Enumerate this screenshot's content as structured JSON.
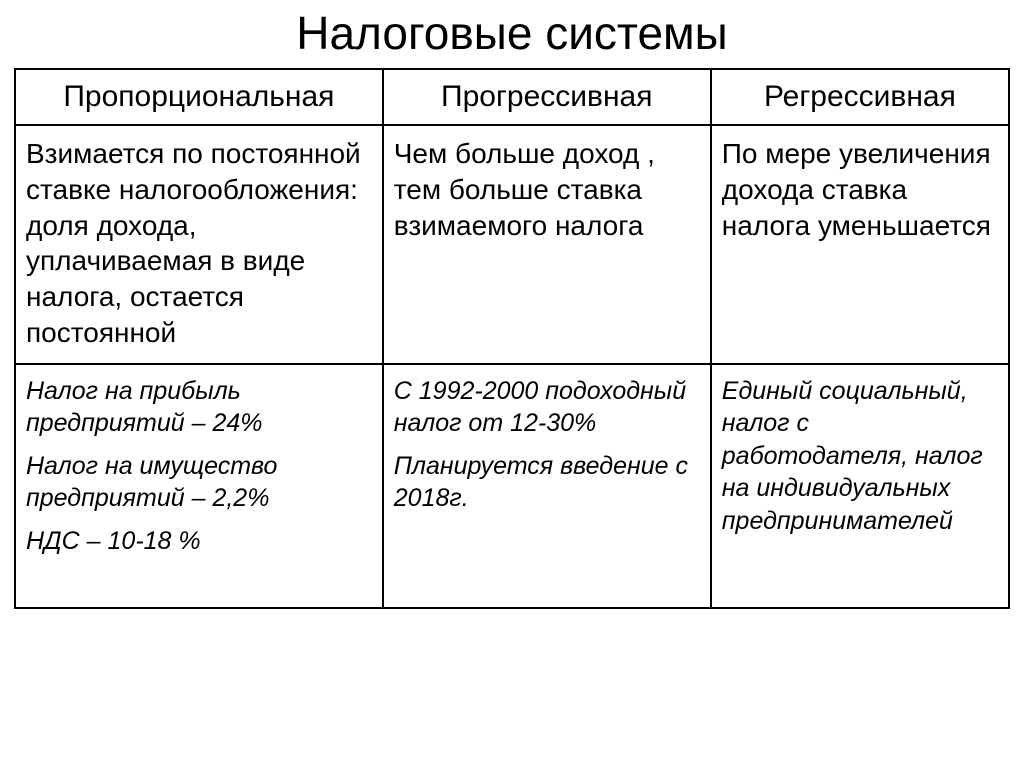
{
  "title": "Налоговые системы",
  "table": {
    "columns": [
      {
        "header": "Пропорциональная"
      },
      {
        "header": "Прогрессивная"
      },
      {
        "header": "Регрессивная"
      }
    ],
    "row_description": [
      "Взимается по постоянной ставке налогообложения: доля дохода, уплачиваемая в виде налога, остается постоянной",
      "Чем больше доход , тем больше ставка взимаемого налога",
      "По мере увеличения дохода ставка налога уменьшается"
    ],
    "row_examples": {
      "col0": [
        "Налог на прибыль предприятий – 24%",
        "Налог на имущество предприятий – 2,2%",
        "НДС – 10-18 %"
      ],
      "col1": [
        "С 1992-2000 подоходный налог от 12-30%",
        "Планируется введение с 2018г."
      ],
      "col2": [
        "Единый социальный, налог с работодателя, налог на индивидуальных предпринимателей"
      ]
    }
  },
  "style": {
    "background_color": "#ffffff",
    "text_color": "#000000",
    "border_color": "#000000",
    "title_fontsize": 46,
    "header_fontsize": 30,
    "desc_fontsize": 28,
    "examples_fontsize": 25,
    "column_widths_pct": [
      37,
      33,
      30
    ]
  }
}
